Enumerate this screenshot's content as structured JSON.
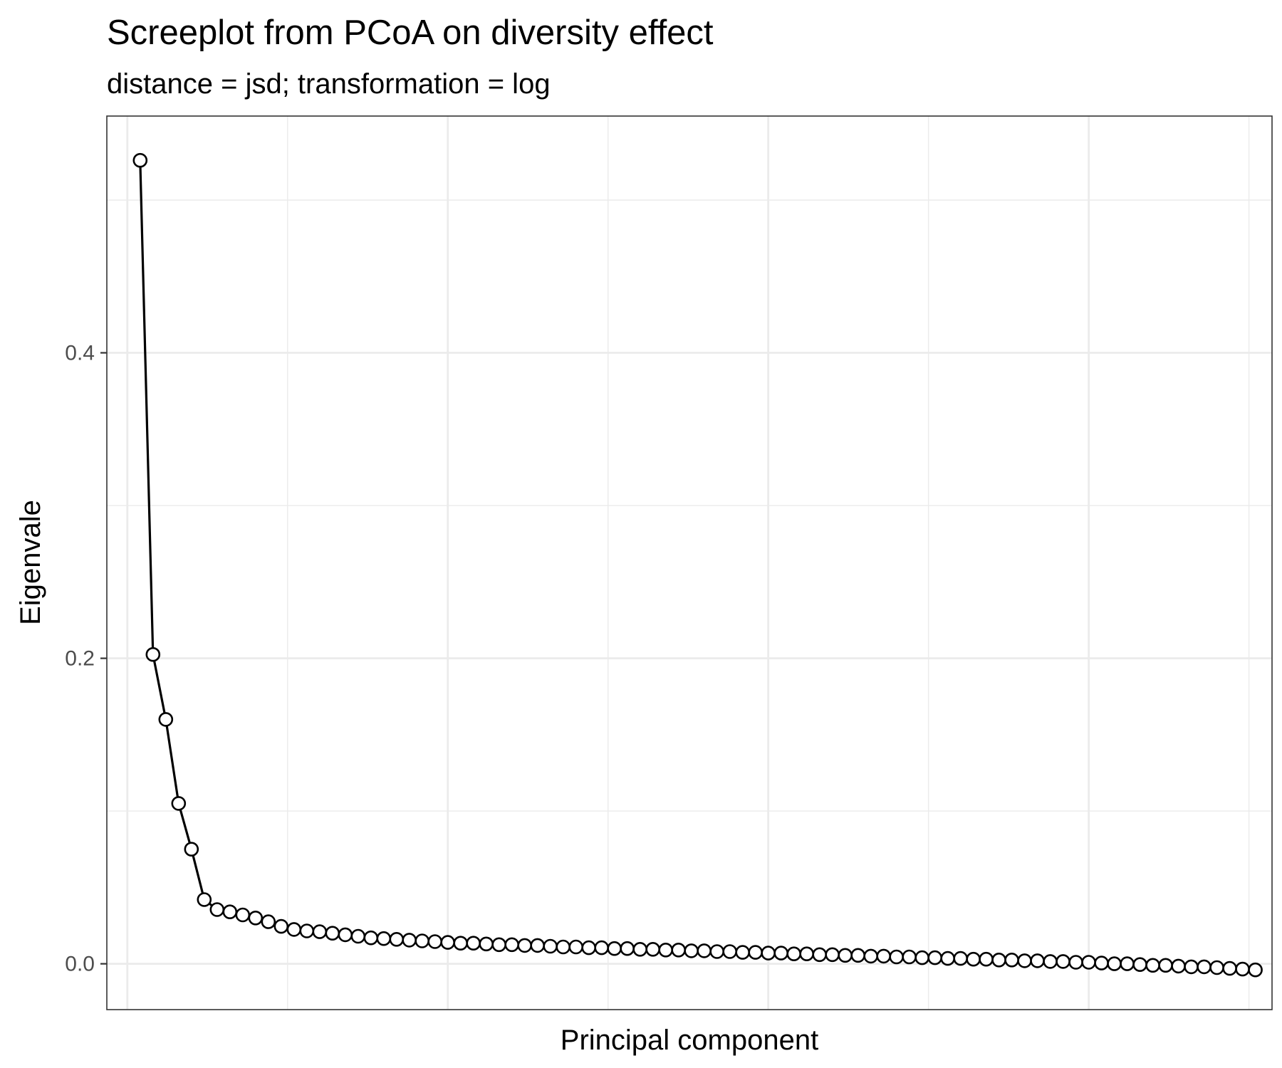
{
  "chart_data": {
    "type": "line",
    "title": "Screeplot from PCoA on diversity effect",
    "subtitle": "distance = jsd; transformation = log",
    "xlabel": "Principal component",
    "ylabel": "Eigenvale",
    "ylim": [
      -0.03,
      0.555
    ],
    "xlim": [
      -1.6,
      89.3
    ],
    "yticks": [
      {
        "value": 0.0,
        "label": "0.0"
      },
      {
        "value": 0.2,
        "label": "0.2"
      },
      {
        "value": 0.4,
        "label": "0.4"
      }
    ],
    "grid": true,
    "legend": "none",
    "marker": "open-circle",
    "colors": {
      "line": "#000000",
      "point_fill": "#ffffff",
      "grid": "#ebebeb",
      "tick_label": "#4d4d4d"
    },
    "series": [
      {
        "values": [
          0.526,
          0.2025,
          0.16,
          0.105,
          0.075,
          0.042,
          0.0355,
          0.034,
          0.032,
          0.03,
          0.0275,
          0.0245,
          0.0225,
          0.0215,
          0.021,
          0.02,
          0.019,
          0.018,
          0.017,
          0.0165,
          0.016,
          0.0155,
          0.015,
          0.0145,
          0.014,
          0.0135,
          0.0135,
          0.013,
          0.0125,
          0.0125,
          0.012,
          0.012,
          0.0115,
          0.011,
          0.011,
          0.0105,
          0.0105,
          0.01,
          0.01,
          0.0095,
          0.0095,
          0.009,
          0.009,
          0.0085,
          0.0085,
          0.008,
          0.008,
          0.0075,
          0.0075,
          0.007,
          0.007,
          0.0065,
          0.0065,
          0.006,
          0.006,
          0.0055,
          0.0055,
          0.005,
          0.005,
          0.0045,
          0.0045,
          0.004,
          0.004,
          0.0035,
          0.0035,
          0.003,
          0.003,
          0.0025,
          0.0025,
          0.002,
          0.002,
          0.0015,
          0.0015,
          0.001,
          0.001,
          0.0005,
          0.0,
          0.0,
          -0.0005,
          -0.001,
          -0.001,
          -0.0015,
          -0.002,
          -0.002,
          -0.0025,
          -0.003,
          -0.0035,
          -0.004
        ]
      }
    ]
  }
}
